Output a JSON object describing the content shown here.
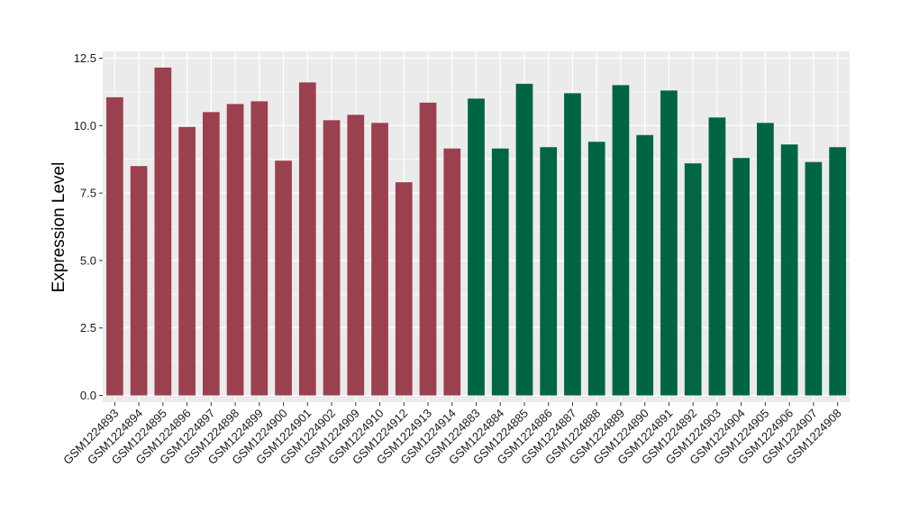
{
  "chart_data": {
    "type": "bar",
    "ylabel": "Expression Level",
    "xlabel": "",
    "ylim": [
      -0.25,
      12.75
    ],
    "yticks": [
      0.0,
      2.5,
      5.0,
      7.5,
      10.0,
      12.5
    ],
    "ytick_labels": [
      "0.0",
      "2.5",
      "5.0",
      "7.5",
      "10.0",
      "12.5"
    ],
    "grid": true,
    "legend": "none",
    "background_color": "#ebebeb",
    "grid_color": "#ffffff",
    "categories": [
      "GSM1224893",
      "GSM1224894",
      "GSM1224895",
      "GSM1224896",
      "GSM1224897",
      "GSM1224898",
      "GSM1224899",
      "GSM1224900",
      "GSM1224901",
      "GSM1224902",
      "GSM1224909",
      "GSM1224910",
      "GSM1224912",
      "GSM1224913",
      "GSM1224914",
      "GSM1224883",
      "GSM1224884",
      "GSM1224885",
      "GSM1224886",
      "GSM1224887",
      "GSM1224888",
      "GSM1224889",
      "GSM1224890",
      "GSM1224891",
      "GSM1224892",
      "GSM1224903",
      "GSM1224904",
      "GSM1224905",
      "GSM1224906",
      "GSM1224907",
      "GSM1224908"
    ],
    "values": [
      11.05,
      8.5,
      12.15,
      9.95,
      10.5,
      10.8,
      10.9,
      8.7,
      11.6,
      10.2,
      10.4,
      10.1,
      7.9,
      10.85,
      9.15,
      11.0,
      9.15,
      11.55,
      9.2,
      11.2,
      9.4,
      11.5,
      9.65,
      11.3,
      8.6,
      10.3,
      8.8,
      10.1,
      9.3,
      8.65,
      9.2
    ],
    "groups": [
      "a",
      "a",
      "a",
      "a",
      "a",
      "a",
      "a",
      "a",
      "a",
      "a",
      "a",
      "a",
      "a",
      "a",
      "a",
      "b",
      "b",
      "b",
      "b",
      "b",
      "b",
      "b",
      "b",
      "b",
      "b",
      "b",
      "b",
      "b",
      "b",
      "b",
      "b"
    ],
    "group_colors": {
      "a": "#9b404f",
      "b": "#006544"
    }
  }
}
